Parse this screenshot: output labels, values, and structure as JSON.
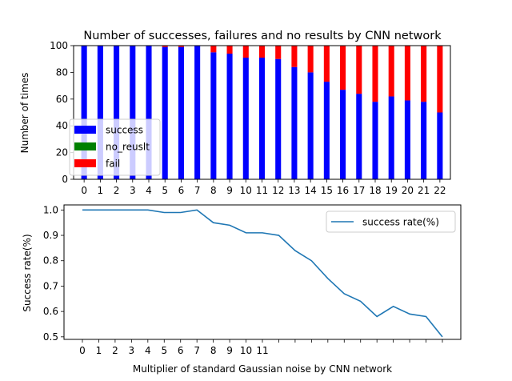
{
  "chart_data": [
    {
      "type": "bar",
      "stacked": true,
      "title": "Number of successes, failures and no results by CNN network",
      "xlabel": "",
      "ylabel": "Number of times",
      "categories": [
        "0",
        "1",
        "2",
        "3",
        "4",
        "5",
        "6",
        "7",
        "8",
        "9",
        "10",
        "11",
        "12",
        "13",
        "14",
        "15",
        "16",
        "17",
        "18",
        "19",
        "20",
        "21",
        "22"
      ],
      "ylim": [
        0,
        100
      ],
      "yticks": [
        0,
        20,
        40,
        60,
        80,
        100
      ],
      "series": [
        {
          "name": "success",
          "color": "#0000ff",
          "values": [
            100,
            100,
            100,
            100,
            100,
            99,
            99,
            100,
            95,
            94,
            91,
            91,
            90,
            84,
            80,
            73,
            67,
            64,
            58,
            62,
            59,
            58,
            50
          ]
        },
        {
          "name": "no_reuslt",
          "color": "#008000",
          "values": [
            0,
            0,
            0,
            0,
            0,
            0,
            0,
            0,
            0,
            0,
            0,
            0,
            0,
            0,
            0,
            0,
            0,
            0,
            0,
            0,
            0,
            0,
            0
          ]
        },
        {
          "name": "fail",
          "color": "#ff0000",
          "values": [
            0,
            0,
            0,
            0,
            0,
            1,
            1,
            0,
            5,
            6,
            9,
            9,
            10,
            16,
            20,
            27,
            33,
            36,
            42,
            38,
            41,
            42,
            50
          ]
        }
      ],
      "legend": "lower-left",
      "grid": false
    },
    {
      "type": "line",
      "title": "",
      "xlabel": "Multiplier of standard Gaussian noise by CNN network",
      "ylabel": "Success rate(%)",
      "x": [
        0,
        1,
        2,
        3,
        4,
        5,
        6,
        7,
        8,
        9,
        10,
        11,
        12,
        13,
        14,
        15,
        16,
        17,
        18,
        19,
        20,
        21,
        22
      ],
      "xtick_labels": [
        "0",
        "1",
        "2",
        "3",
        "4",
        "5",
        "6",
        "7",
        "8",
        "9",
        "10",
        "11",
        "",
        "",
        "",
        "",
        "",
        "",
        "",
        "",
        "",
        "",
        ""
      ],
      "ylim": [
        0.49,
        1.02
      ],
      "yticks": [
        0.5,
        0.6,
        0.7,
        0.8,
        0.9,
        1.0
      ],
      "ytick_labels": [
        "0.5",
        "0.6",
        "0.7",
        "0.8",
        "0.9",
        "1.0"
      ],
      "series": [
        {
          "name": "success rate(%)",
          "color": "#1f77b4",
          "values": [
            1.0,
            1.0,
            1.0,
            1.0,
            1.0,
            0.99,
            0.99,
            1.0,
            0.95,
            0.94,
            0.91,
            0.91,
            0.9,
            0.84,
            0.8,
            0.73,
            0.67,
            0.64,
            0.58,
            0.62,
            0.59,
            0.58,
            0.5
          ]
        }
      ],
      "legend": "top-right",
      "grid": false
    }
  ]
}
